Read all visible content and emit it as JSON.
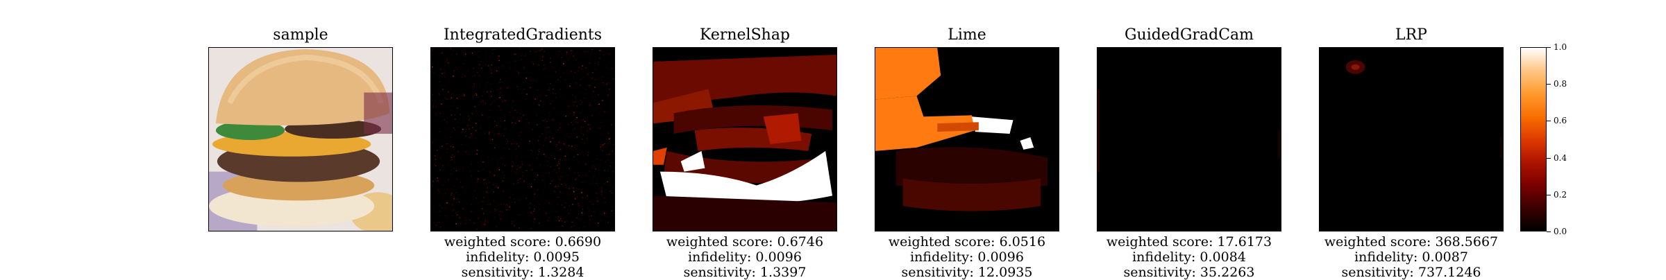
{
  "panels": [
    {
      "title": "sample"
    },
    {
      "title": "IntegratedGradients",
      "metrics": {
        "weighted_score": "weighted score: 0.6690",
        "infidelity": "infidelity: 0.0095",
        "sensitivity": "sensitivity: 1.3284"
      }
    },
    {
      "title": "KernelShap",
      "metrics": {
        "weighted_score": "weighted score: 0.6746",
        "infidelity": "infidelity: 0.0096",
        "sensitivity": "sensitivity: 1.3397"
      }
    },
    {
      "title": "Lime",
      "metrics": {
        "weighted_score": "weighted score: 6.0516",
        "infidelity": "infidelity: 0.0096",
        "sensitivity": "sensitivity: 12.0935"
      }
    },
    {
      "title": "GuidedGradCam",
      "metrics": {
        "weighted_score": "weighted score: 17.6173",
        "infidelity": "infidelity: 0.0084",
        "sensitivity": "sensitivity: 35.2263"
      }
    },
    {
      "title": "LRP",
      "metrics": {
        "weighted_score": "weighted score: 368.5667",
        "infidelity": "infidelity: 0.0087",
        "sensitivity": "sensitivity: 737.1246"
      }
    }
  ],
  "colorbar": {
    "colormap": "gist_heat",
    "ticks": [
      "0.0",
      "0.2",
      "0.4",
      "0.6",
      "0.8",
      "1.0"
    ]
  }
}
